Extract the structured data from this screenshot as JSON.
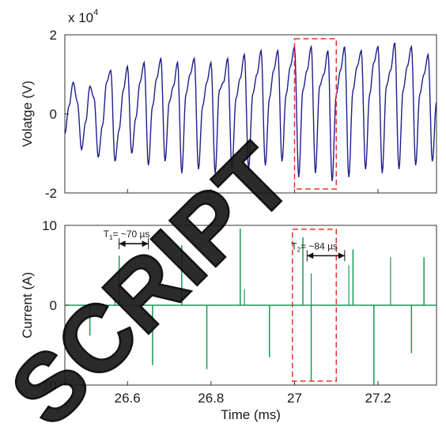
{
  "chart_data": [
    {
      "type": "line",
      "panel": "top",
      "multiplier_label": "x 10",
      "multiplier_exponent": "4",
      "ylabel": "Volatge (V)",
      "xlabel": "",
      "xlim": [
        26.45,
        27.34
      ],
      "ylim": [
        -2,
        2
      ],
      "y_ticks": [
        "2",
        "0",
        "-2"
      ],
      "y_tick_values": [
        2,
        0,
        -2
      ],
      "x_tick_values": [
        26.6,
        26.8,
        27.0,
        27.2
      ],
      "series": [
        {
          "color": "#1f1f8c",
          "description_points_per_cycle": 5,
          "x_start": 26.45,
          "x_end": 27.34,
          "samples": [
            [
              26.45,
              -0.5
            ],
            [
              26.46,
              0.2
            ],
            [
              26.47,
              0.8
            ],
            [
              26.48,
              0.3
            ],
            [
              26.49,
              -0.9
            ],
            [
              26.5,
              -0.2
            ],
            [
              26.51,
              0.7
            ],
            [
              26.52,
              0.4
            ],
            [
              26.53,
              -1.1
            ],
            [
              26.54,
              -0.3
            ],
            [
              26.55,
              0.8
            ],
            [
              26.56,
              1.1
            ],
            [
              26.57,
              -1.2
            ],
            [
              26.58,
              -0.4
            ],
            [
              26.59,
              0.6
            ],
            [
              26.6,
              1.2
            ],
            [
              26.61,
              -1.0
            ],
            [
              26.62,
              -0.1
            ],
            [
              26.63,
              0.8
            ],
            [
              26.64,
              1.3
            ],
            [
              26.65,
              -1.3
            ],
            [
              26.66,
              0.2
            ],
            [
              26.67,
              0.9
            ],
            [
              26.68,
              1.4
            ],
            [
              26.69,
              -1.2
            ],
            [
              26.7,
              0.3
            ],
            [
              26.71,
              0.7
            ],
            [
              26.72,
              1.3
            ],
            [
              26.73,
              -1.5
            ],
            [
              26.74,
              0.5
            ],
            [
              26.75,
              1.0
            ],
            [
              26.76,
              1.4
            ],
            [
              26.77,
              -1.4
            ],
            [
              26.78,
              0.2
            ],
            [
              26.79,
              0.8
            ],
            [
              26.8,
              1.3
            ],
            [
              26.81,
              -1.5
            ],
            [
              26.82,
              0.6
            ],
            [
              26.83,
              0.8
            ],
            [
              26.84,
              1.4
            ],
            [
              26.85,
              -1.4
            ],
            [
              26.86,
              0.4
            ],
            [
              26.87,
              0.9
            ],
            [
              26.88,
              1.5
            ],
            [
              26.89,
              -1.4
            ],
            [
              26.9,
              0.5
            ],
            [
              26.91,
              1.0
            ],
            [
              26.92,
              1.6
            ],
            [
              26.93,
              -1.3
            ],
            [
              26.94,
              0.4
            ],
            [
              26.95,
              1.1
            ],
            [
              26.96,
              1.6
            ],
            [
              26.97,
              -1.2
            ],
            [
              26.98,
              0.5
            ],
            [
              26.99,
              1.2
            ],
            [
              27.0,
              1.7
            ],
            [
              27.01,
              -1.6
            ],
            [
              27.02,
              0.6
            ],
            [
              27.03,
              1.1
            ],
            [
              27.04,
              1.7
            ],
            [
              27.05,
              -1.5
            ],
            [
              27.06,
              0.7
            ],
            [
              27.07,
              1.0
            ],
            [
              27.08,
              1.6
            ],
            [
              27.09,
              -1.7
            ],
            [
              27.1,
              0.5
            ],
            [
              27.11,
              1.1
            ],
            [
              27.12,
              1.7
            ],
            [
              27.13,
              -1.6
            ],
            [
              27.14,
              0.6
            ],
            [
              27.15,
              1.2
            ],
            [
              27.16,
              1.6
            ],
            [
              27.17,
              -1.4
            ],
            [
              27.18,
              0.5
            ],
            [
              27.19,
              1.3
            ],
            [
              27.2,
              1.7
            ],
            [
              27.21,
              -1.5
            ],
            [
              27.22,
              0.7
            ],
            [
              27.23,
              1.1
            ],
            [
              27.24,
              1.8
            ],
            [
              27.25,
              -1.4
            ],
            [
              27.26,
              0.6
            ],
            [
              27.27,
              1.2
            ],
            [
              27.28,
              1.7
            ],
            [
              27.29,
              -1.3
            ],
            [
              27.3,
              0.5
            ],
            [
              27.31,
              1.0
            ],
            [
              27.32,
              1.5
            ],
            [
              27.33,
              -1.2
            ],
            [
              27.34,
              0.3
            ]
          ]
        }
      ],
      "highlight_box": {
        "x_range": [
          27.0,
          27.1
        ],
        "y_range": [
          -1.9,
          1.9
        ],
        "color": "#e8322e"
      }
    },
    {
      "type": "line",
      "panel": "bottom",
      "ylabel": "Current (A)",
      "xlabel": "Time (ms)",
      "xlim": [
        26.45,
        27.34
      ],
      "ylim": [
        -10,
        10
      ],
      "y_ticks": [
        "10",
        "0",
        "-10"
      ],
      "y_tick_values": [
        10,
        0,
        -10
      ],
      "x_ticks": [
        "26.6",
        "26.8",
        "27",
        "27.2"
      ],
      "x_tick_values": [
        26.6,
        26.8,
        27.0,
        27.2
      ],
      "baseline": 0,
      "series": [
        {
          "color": "#1a9850",
          "spikes": [
            [
              26.51,
              -3.8
            ],
            [
              26.58,
              6.2
            ],
            [
              26.66,
              -7.5
            ],
            [
              26.73,
              7.5
            ],
            [
              26.79,
              -8.0
            ],
            [
              26.87,
              9.6
            ],
            [
              26.94,
              -6.5
            ],
            [
              27.02,
              8.5
            ],
            [
              27.04,
              -9.5
            ],
            [
              27.14,
              7.0
            ],
            [
              27.19,
              -10.0
            ],
            [
              27.28,
              -6.0
            ],
            [
              27.31,
              6.0
            ]
          ],
          "secondary_spikes": [
            [
              26.57,
              1.5
            ],
            [
              26.88,
              2.0
            ],
            [
              27.04,
              4.0
            ],
            [
              27.13,
              5.0
            ],
            [
              27.23,
              6.0
            ]
          ]
        }
      ],
      "annotations": [
        {
          "label_main": "T",
          "label_sub": "1",
          "label_rest": "= ~70 µs",
          "x_from": 26.58,
          "x_to": 26.65,
          "y": 7.7
        },
        {
          "label_main": "T",
          "label_sub": "2",
          "label_rest": "= ~84 µs",
          "x_from": 27.03,
          "x_to": 27.12,
          "y": 6.2
        }
      ],
      "highlight_box": {
        "x_range": [
          26.995,
          27.1
        ],
        "y_range": [
          -9.5,
          9.5
        ],
        "color": "#e8322e"
      }
    }
  ],
  "watermark": "SCRIPT"
}
